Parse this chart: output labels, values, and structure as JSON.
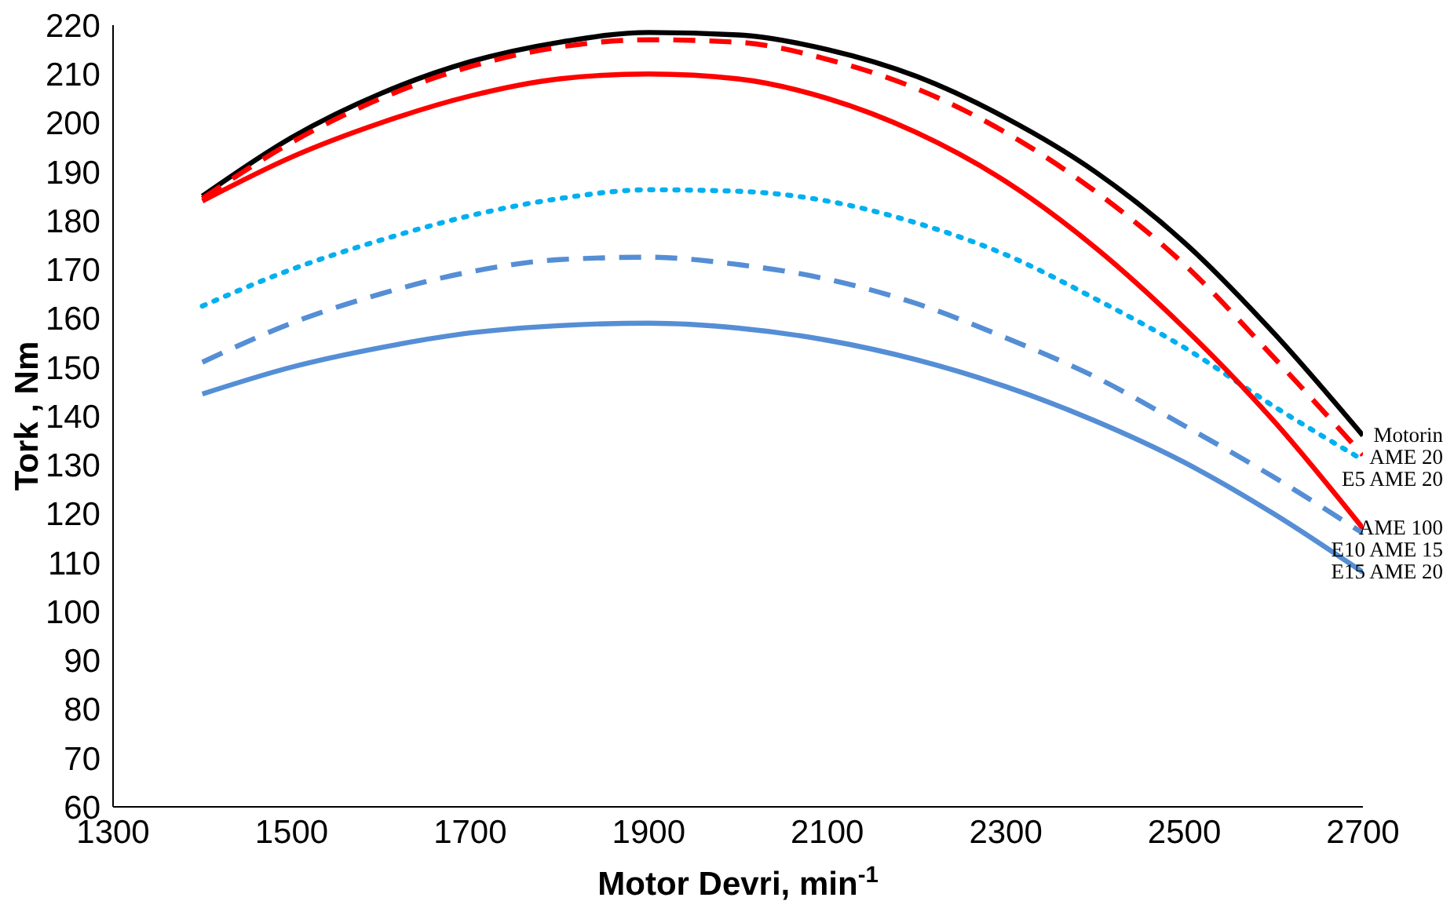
{
  "chart_data": {
    "type": "line",
    "xlabel": "Motor Devri, min$^{-1}$",
    "ylabel": "Tork , Nm",
    "x": [
      1400,
      1500,
      1600,
      1700,
      1800,
      1900,
      2000,
      2100,
      2200,
      2300,
      2400,
      2500,
      2600,
      2700
    ],
    "xlim": [
      1300,
      2700
    ],
    "xticks": [
      1300,
      1500,
      1700,
      1900,
      2100,
      2300,
      2500,
      2700
    ],
    "ylim": [
      60,
      220
    ],
    "yticks": [
      60,
      70,
      80,
      90,
      100,
      110,
      120,
      130,
      140,
      150,
      160,
      170,
      180,
      190,
      200,
      210,
      220
    ],
    "grid": false,
    "marker": "none",
    "series": [
      {
        "name": "Motorin",
        "color": "#000000",
        "line_style": "solid",
        "values": [
          185,
          197,
          206,
          212.5,
          216.5,
          218.5,
          218,
          215,
          209.5,
          201,
          190,
          175.5,
          157,
          136
        ]
      },
      {
        "name": "AME 20",
        "color": "#ff0000",
        "line_style": "dashed",
        "values": [
          184.5,
          196,
          205,
          211.5,
          215.5,
          217,
          216.5,
          213,
          207,
          198,
          186,
          171,
          152,
          132
        ]
      },
      {
        "name": "E5 AME 20",
        "color": "#00b0f0",
        "line_style": "dotted",
        "values": [
          162.5,
          170,
          176,
          181,
          184.5,
          186.3,
          186,
          184,
          179.5,
          173,
          164,
          154,
          142,
          131
        ]
      },
      {
        "name": "AME 100",
        "color": "#ff0000",
        "line_style": "solid",
        "values": [
          184,
          193,
          200,
          205.5,
          209,
          210,
          209,
          205,
          198,
          188,
          174.5,
          158,
          139,
          117
        ]
      },
      {
        "name": "E10 AME 15",
        "color": "#558ed5",
        "line_style": "dashed",
        "values": [
          151,
          159,
          165,
          169.5,
          172,
          172.5,
          171,
          168,
          163,
          156,
          148,
          138,
          127.5,
          116
        ]
      },
      {
        "name": "E15 AME 20",
        "color": "#558ed5",
        "line_style": "solid",
        "values": [
          144.5,
          150,
          154,
          157,
          158.5,
          159,
          158,
          155.5,
          151.5,
          146,
          139,
          130.5,
          120,
          108
        ]
      }
    ]
  }
}
